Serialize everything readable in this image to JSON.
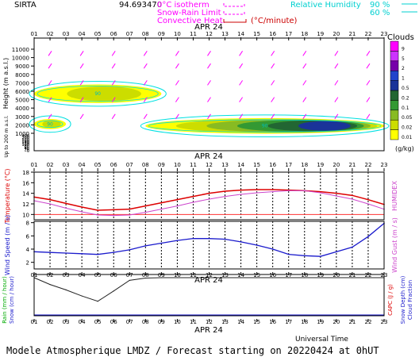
{
  "header": {
    "site": "SIRTA",
    "site_code": "94.693470",
    "legend_isotherm": "0°C isotherm",
    "legend_snow_rain": "Snow-Rain Limit",
    "legend_convective": "Convective Heat.",
    "legend_convective_unit": "(°C/minute)",
    "legend_rh_label": "Relative Humidity",
    "legend_rh_90": "90 %",
    "legend_rh_60": "60 %"
  },
  "colors": {
    "isotherm": "#ff00ff",
    "convective": "#cc0000",
    "humidity": "#00e0e0",
    "temperature": "#dd0000",
    "humidex": "#cc44cc",
    "wind": "#1a1acc",
    "rain": "#222222"
  },
  "footer": {
    "title": "Modele Atmospherique LMDZ / Forecast starting on 20220424 at 0hUT",
    "time_axis_label": "Universal Time"
  },
  "chart_data": [
    {
      "type": "heatmap",
      "panel": "clouds",
      "date_label": "APR 24",
      "x_ticks": [
        "01",
        "02",
        "03",
        "04",
        "05",
        "06",
        "07",
        "08",
        "09",
        "10",
        "11",
        "12",
        "13",
        "14",
        "15",
        "16",
        "17",
        "18",
        "19",
        "20",
        "21",
        "22",
        "23"
      ],
      "ylabel": "Height (m a.s.l.)",
      "ylabel_low": "Up to 200 m a.s.l.",
      "y_ticks": [
        "11000",
        "10000",
        "9000",
        "8000",
        "7000",
        "6000",
        "5000",
        "4000",
        "3000",
        "2000",
        "1000",
        "400",
        "300",
        "200",
        "180",
        "160",
        "140",
        "120",
        "100",
        "80",
        "60",
        "40",
        "20",
        "0"
      ],
      "colorbar_title": "Clouds",
      "colorbar_unit": "(g/kg)",
      "colorbar_levels": [
        "0.01",
        "0.02",
        "0.05",
        "0.1",
        "0.2",
        "0.5",
        "1",
        "2",
        "5",
        "9"
      ],
      "humidity_contour_label": "90",
      "layers": [
        {
          "name": "mid-level layer",
          "hour_start": 1,
          "hour_end": 9,
          "height_low_m": 4600,
          "height_high_m": 6800,
          "max_level": "0.02"
        },
        {
          "name": "low-level layer",
          "hour_start": 8,
          "hour_end": 23,
          "height_low_m": 900,
          "height_high_m": 2800,
          "max_level": "0.5"
        },
        {
          "name": "early low layer",
          "hour_start": 1,
          "hour_end": 3,
          "height_low_m": 1500,
          "height_high_m": 2700,
          "max_level": "0.02"
        }
      ]
    },
    {
      "type": "line",
      "panel": "temperature",
      "date_label": "APR 24",
      "x": [
        "01",
        "02",
        "03",
        "04",
        "05",
        "06",
        "07",
        "08",
        "09",
        "10",
        "11",
        "12",
        "13",
        "14",
        "15",
        "16",
        "17",
        "18",
        "19",
        "20",
        "21",
        "22",
        "23"
      ],
      "ylabel": "Temperature (°C)",
      "ylabel_right": "HUMIDEX",
      "y_ticks": [
        10,
        12,
        14,
        16,
        18
      ],
      "ylim": [
        9,
        18
      ],
      "reference_line": 10,
      "series": [
        {
          "name": "Temperature",
          "values": [
            13.3,
            12.8,
            12.1,
            11.4,
            10.8,
            10.9,
            11.0,
            11.6,
            12.2,
            12.8,
            13.4,
            14.0,
            14.4,
            14.6,
            14.7,
            14.7,
            14.6,
            14.5,
            14.3,
            14.0,
            13.6,
            12.8,
            11.9
          ]
        },
        {
          "name": "HUMIDEX",
          "values": [
            12.6,
            12.0,
            11.2,
            10.5,
            9.9,
            9.8,
            9.9,
            10.4,
            11.0,
            11.6,
            12.3,
            12.9,
            13.4,
            13.8,
            14.1,
            14.3,
            14.5,
            14.5,
            14.1,
            13.5,
            12.9,
            12.0,
            11.0
          ]
        }
      ]
    },
    {
      "type": "line",
      "panel": "wind",
      "x": [
        "01",
        "02",
        "03",
        "04",
        "05",
        "06",
        "07",
        "08",
        "09",
        "10",
        "11",
        "12",
        "13",
        "14",
        "15",
        "16",
        "17",
        "18",
        "19",
        "20",
        "21",
        "22",
        "23"
      ],
      "ylabel": "Wind Speed (m / s)",
      "ylabel_right": "Wind Gust (m / s)",
      "y_ticks": [
        2.0,
        4.0,
        6.0,
        8.0
      ],
      "ylim": [
        1.0,
        8.2
      ],
      "series": [
        {
          "name": "Wind Speed",
          "values": [
            3.6,
            3.5,
            3.4,
            3.3,
            3.2,
            3.5,
            3.9,
            4.5,
            4.9,
            5.3,
            5.6,
            5.6,
            5.5,
            5.1,
            4.6,
            4.0,
            3.2,
            3.0,
            2.9,
            3.6,
            4.3,
            5.9,
            7.9
          ]
        }
      ]
    },
    {
      "type": "line",
      "panel": "precipitation",
      "date_label": "APR 24",
      "x": [
        "01",
        "02",
        "03",
        "04",
        "05",
        "06",
        "07",
        "08",
        "09",
        "10",
        "11",
        "12",
        "13",
        "14",
        "15",
        "16",
        "17",
        "18",
        "19",
        "20",
        "21",
        "22",
        "23"
      ],
      "ylabel_rain": "Rain (mm / hour)",
      "ylabel_snow": "Snow (cm / hour)",
      "ylabel_capc": "CAPC (J / g)",
      "ylabel_snowdepth": "Snow Depth (cm)",
      "ylabel_cloudfrac": "Cloud Fraction",
      "series": [
        {
          "name": "Cloud Fraction",
          "values": [
            1.0,
            0.82,
            0.68,
            0.52,
            0.38,
            0.65,
            0.93,
            0.99,
            1.0,
            1.0,
            1.0,
            1.0,
            1.0,
            1.0,
            1.0,
            1.0,
            1.0,
            1.0,
            1.0,
            1.0,
            1.0,
            1.0,
            1.0
          ]
        },
        {
          "name": "Rain",
          "values": [
            0,
            0,
            0,
            0,
            0,
            0,
            0,
            0,
            0,
            0,
            0,
            0,
            0,
            0,
            0,
            0,
            0,
            0,
            0,
            0,
            0,
            0,
            0
          ]
        }
      ]
    }
  ]
}
